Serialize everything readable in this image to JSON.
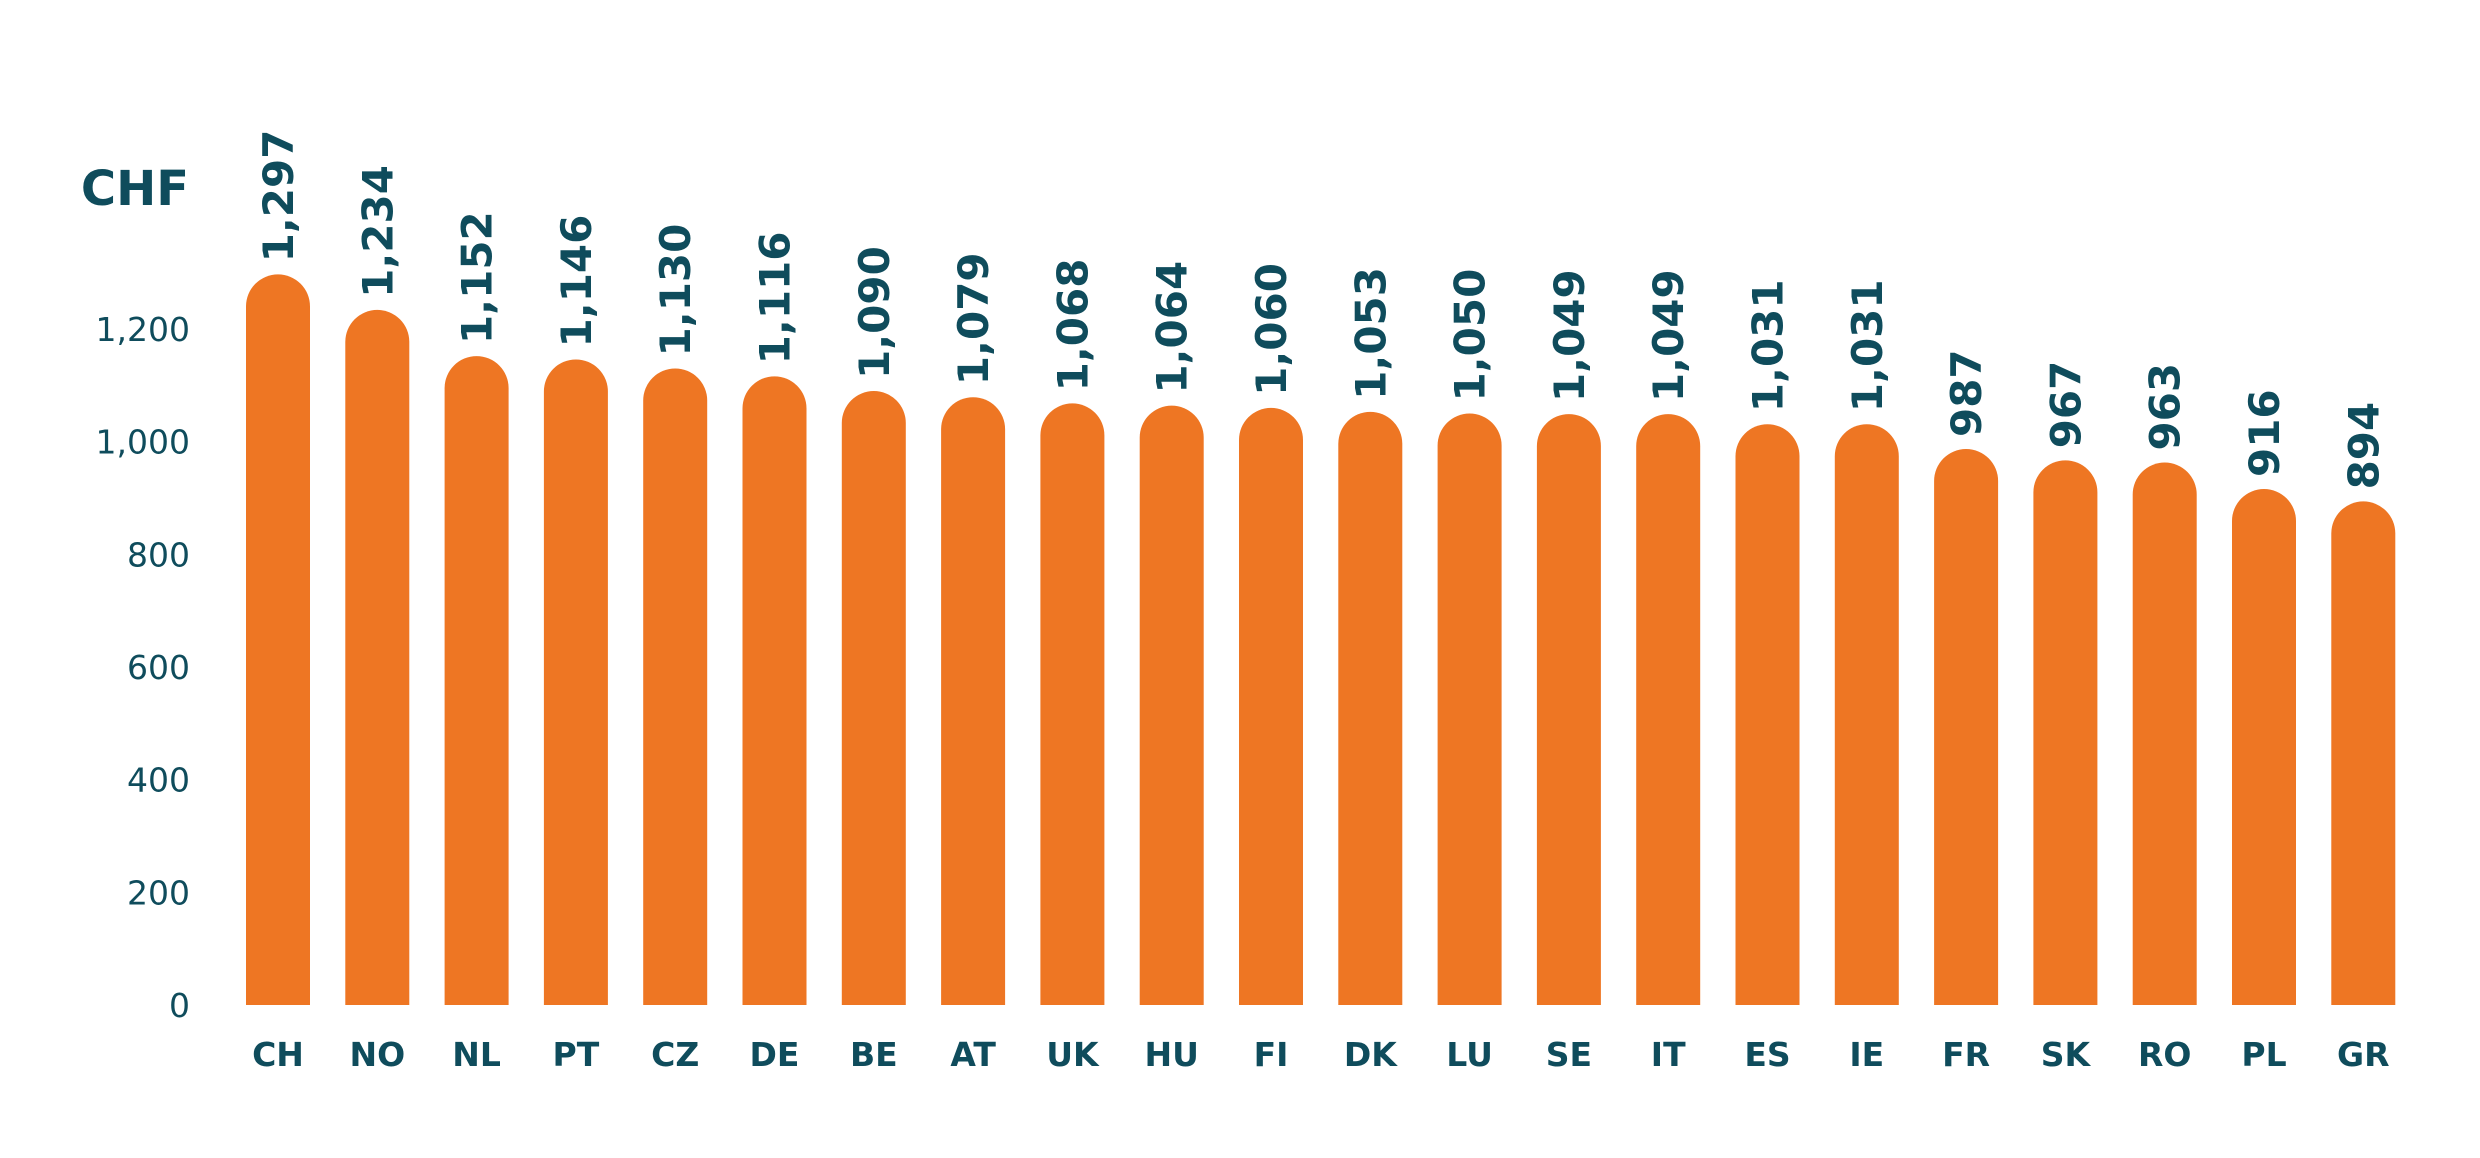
{
  "chart_data": {
    "type": "bar",
    "unit_label": "CHF",
    "categories": [
      "CH",
      "NO",
      "NL",
      "PT",
      "CZ",
      "DE",
      "BE",
      "AT",
      "UK",
      "HU",
      "FI",
      "DK",
      "LU",
      "SE",
      "IT",
      "ES",
      "IE",
      "FR",
      "SK",
      "RO",
      "PL",
      "GR"
    ],
    "values": [
      1297,
      1234,
      1152,
      1146,
      1130,
      1116,
      1090,
      1079,
      1068,
      1064,
      1060,
      1053,
      1050,
      1049,
      1049,
      1031,
      1031,
      987,
      967,
      963,
      916,
      894
    ],
    "value_labels": [
      "1,297",
      "1,234",
      "1,152",
      "1,146",
      "1,130",
      "1,116",
      "1,090",
      "1,079",
      "1,068",
      "1,064",
      "1,060",
      "1,053",
      "1,050",
      "1,049",
      "1,049",
      "1,031",
      "1,031",
      "987",
      "967",
      "963",
      "916",
      "894"
    ],
    "y_ticks": [
      {
        "value": 0,
        "label": "0"
      },
      {
        "value": 200,
        "label": "200"
      },
      {
        "value": 400,
        "label": "400"
      },
      {
        "value": 600,
        "label": "600"
      },
      {
        "value": 800,
        "label": "800"
      },
      {
        "value": 1000,
        "label": "1,000"
      },
      {
        "value": 1200,
        "label": "1,200"
      }
    ],
    "ylim": [
      0,
      1200
    ],
    "grid": false,
    "legend": "none",
    "bar_color": "#EE7623",
    "text_color": "#0F4C5C",
    "bar_shape": "rounded-top"
  }
}
